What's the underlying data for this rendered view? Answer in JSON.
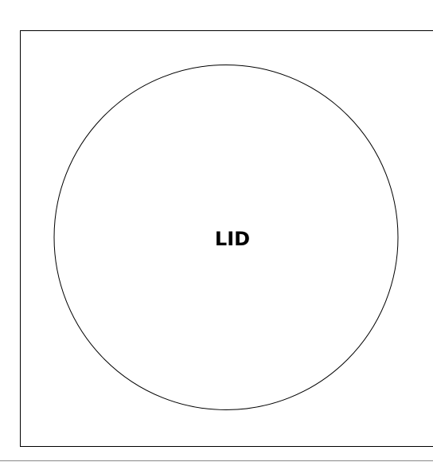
{
  "diagram": {
    "label": "LID",
    "colors": {
      "stroke": "#000000",
      "background": "#ffffff",
      "bottom_rule": "#888888"
    }
  }
}
